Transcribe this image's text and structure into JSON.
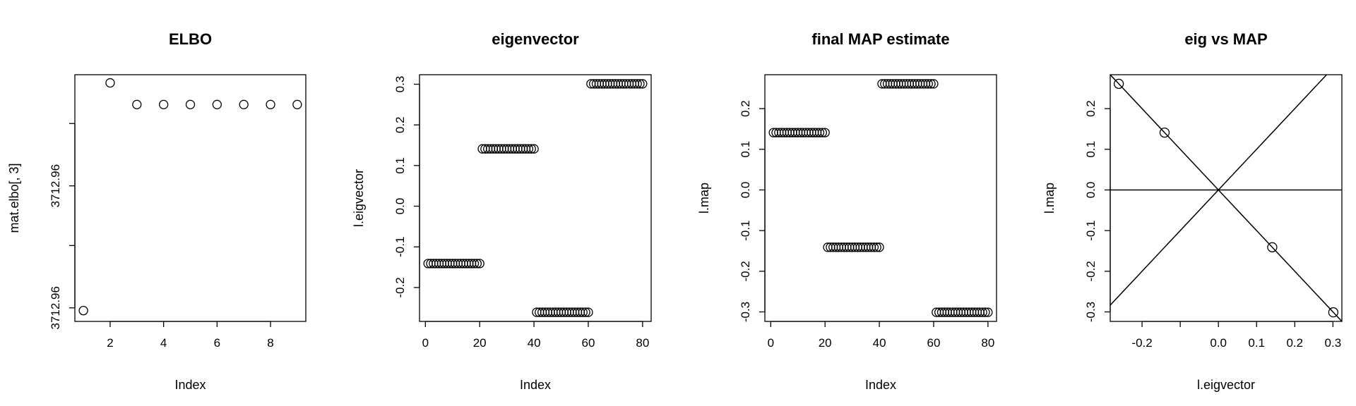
{
  "chart_data": [
    {
      "type": "scatter",
      "title": "ELBO",
      "xlabel": "Index",
      "ylabel": "mat.elbo[, 3]",
      "xlim": [
        0.68,
        9.32
      ],
      "ylim": [
        3712.9546,
        3712.9637
      ],
      "xticks": [
        2,
        4,
        6,
        8
      ],
      "xtick_labels": [
        "2",
        "4",
        "6",
        "8"
      ],
      "yticks": [
        3712.9551,
        3712.9574,
        3712.9596,
        3712.9619
      ],
      "ytick_labels": [
        "3712.96",
        "",
        "3712.96",
        ""
      ],
      "x": [
        1,
        2,
        3,
        4,
        5,
        6,
        7,
        8,
        9
      ],
      "y": [
        3712.955,
        3712.9634,
        3712.9626,
        3712.9626,
        3712.9626,
        3712.9626,
        3712.9626,
        3712.9626,
        3712.9626
      ]
    },
    {
      "type": "scatter",
      "title": "eigenvector",
      "xlabel": "Index",
      "ylabel": "l.eigvector",
      "xlim": [
        -2.16,
        83.16
      ],
      "ylim": [
        -0.2834,
        0.3234
      ],
      "xticks": [
        0,
        20,
        40,
        60,
        80
      ],
      "xtick_labels": [
        "0",
        "20",
        "40",
        "60",
        "80"
      ],
      "yticks": [
        -0.2,
        -0.1,
        0.0,
        0.1,
        0.2,
        0.3
      ],
      "ytick_labels": [
        "-0.2",
        "-0.1",
        "0.0",
        "0.1",
        "0.2",
        "0.3"
      ],
      "segments": [
        {
          "x_from": 1,
          "x_to": 20,
          "y": -0.141
        },
        {
          "x_from": 21,
          "x_to": 40,
          "y": 0.141
        },
        {
          "x_from": 41,
          "x_to": 60,
          "y": -0.261
        },
        {
          "x_from": 61,
          "x_to": 80,
          "y": 0.301
        }
      ]
    },
    {
      "type": "scatter",
      "title": "final MAP estimate",
      "xlabel": "Index",
      "ylabel": "l.map",
      "xlim": [
        -2.16,
        83.16
      ],
      "ylim": [
        -0.3234,
        0.2834
      ],
      "xticks": [
        0,
        20,
        40,
        60,
        80
      ],
      "xtick_labels": [
        "0",
        "20",
        "40",
        "60",
        "80"
      ],
      "yticks": [
        -0.3,
        -0.2,
        -0.1,
        0.0,
        0.1,
        0.2
      ],
      "ytick_labels": [
        "-0.3",
        "-0.2",
        "-0.1",
        "0.0",
        "0.1",
        "0.2"
      ],
      "segments": [
        {
          "x_from": 1,
          "x_to": 20,
          "y": 0.141
        },
        {
          "x_from": 21,
          "x_to": 40,
          "y": -0.141
        },
        {
          "x_from": 41,
          "x_to": 60,
          "y": 0.261
        },
        {
          "x_from": 61,
          "x_to": 80,
          "y": -0.301
        }
      ]
    },
    {
      "type": "scatter",
      "title": "eig vs MAP",
      "xlabel": "l.eigvector",
      "ylabel": "l.map",
      "xlim": [
        -0.2834,
        0.3234
      ],
      "ylim": [
        -0.3234,
        0.2834
      ],
      "xticks": [
        -0.2,
        -0.1,
        0.0,
        0.1,
        0.2,
        0.3
      ],
      "xtick_labels": [
        "-0.2",
        "",
        "0.0",
        "0.1",
        "0.2",
        "0.3"
      ],
      "yticks": [
        -0.3,
        -0.2,
        -0.1,
        0.0,
        0.1,
        0.2
      ],
      "ytick_labels": [
        "-0.3",
        "-0.2",
        "-0.1",
        "0.0",
        "0.1",
        "0.2"
      ],
      "x": [
        -0.261,
        -0.141,
        0.141,
        0.301
      ],
      "y": [
        0.261,
        0.141,
        -0.141,
        -0.301
      ],
      "reference_lines": [
        {
          "kind": "abline",
          "intercept": 0,
          "slope": 1
        },
        {
          "kind": "abline",
          "intercept": 0,
          "slope": -1
        },
        {
          "kind": "hline",
          "y": 0
        }
      ]
    }
  ]
}
